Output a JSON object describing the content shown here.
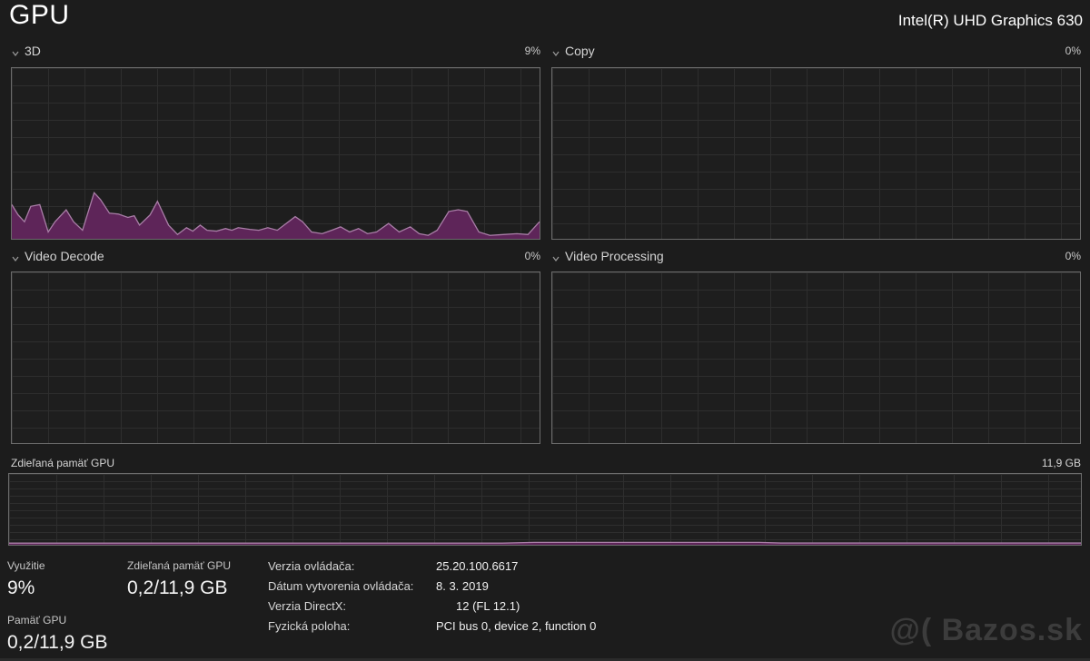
{
  "header": {
    "title": "GPU",
    "gpu_name": "Intel(R) UHD Graphics 630"
  },
  "sections": [
    {
      "label": "3D",
      "value": "9%"
    },
    {
      "label": "Copy",
      "value": "0%"
    },
    {
      "label": "Video Decode",
      "value": "0%"
    },
    {
      "label": "Video Processing",
      "value": "0%"
    }
  ],
  "shared_memory_section": {
    "label": "Zdieľaná pamäť GPU",
    "max_label": "11,9 GB"
  },
  "stats": {
    "usage": {
      "label": "Využitie",
      "value": "9%"
    },
    "shared_memory": {
      "label": "Zdieľaná pamäť GPU",
      "value": "0,2/11,9 GB"
    },
    "gpu_memory": {
      "label": "Pamäť GPU",
      "value": "0,2/11,9 GB"
    }
  },
  "driver_info": [
    {
      "label": "Verzia ovládača:",
      "value": "25.20.100.6617"
    },
    {
      "label": "Dátum vytvorenia ovládača:",
      "value": "8. 3. 2019"
    },
    {
      "label": "Verzia DirectX:",
      "value": "12 (FL 12.1)"
    },
    {
      "label": "Fyzická poloha:",
      "value": "PCI bus 0, device 2, function 0"
    }
  ],
  "watermark": "@( Bazos.sk",
  "colors": {
    "background": "#1c1c1c",
    "chart_background": "#1e1e1e",
    "chart_border": "#6b6b6b",
    "grid_line": "#2e2e2e",
    "chart_fill": "#5e2559",
    "chart_line": "#a97ea7"
  },
  "chart_data": [
    {
      "type": "area",
      "title": "3D",
      "current_value_pct": 9,
      "ylim": [
        0,
        100
      ],
      "legend_position": "top-right",
      "grid": true,
      "points": [
        [
          0,
          20
        ],
        [
          1.2,
          14
        ],
        [
          2.4,
          10
        ],
        [
          3.6,
          19
        ],
        [
          5.3,
          20
        ],
        [
          6.9,
          4
        ],
        [
          8.2,
          10
        ],
        [
          10.3,
          17
        ],
        [
          11.7,
          10
        ],
        [
          13.4,
          5
        ],
        [
          15.6,
          27
        ],
        [
          16.8,
          23
        ],
        [
          18.5,
          15
        ],
        [
          20.2,
          14.5
        ],
        [
          22,
          12.5
        ],
        [
          23.2,
          13.5
        ],
        [
          24.2,
          8
        ],
        [
          26.2,
          14
        ],
        [
          27.6,
          22
        ],
        [
          29.7,
          8
        ],
        [
          31.4,
          2.5
        ],
        [
          33.1,
          6.5
        ],
        [
          34.3,
          4.5
        ],
        [
          35.7,
          8
        ],
        [
          37,
          5
        ],
        [
          38.8,
          4.5
        ],
        [
          40.5,
          6
        ],
        [
          41.7,
          5
        ],
        [
          42.9,
          6.5
        ],
        [
          45.1,
          5.5
        ],
        [
          46.8,
          5
        ],
        [
          48.5,
          6.5
        ],
        [
          50.3,
          5
        ],
        [
          52,
          9
        ],
        [
          53.7,
          13
        ],
        [
          55.1,
          10
        ],
        [
          56.8,
          4
        ],
        [
          58.8,
          3
        ],
        [
          60.6,
          5
        ],
        [
          62.3,
          7
        ],
        [
          64,
          4
        ],
        [
          65.7,
          6
        ],
        [
          67.4,
          3
        ],
        [
          69.1,
          4
        ],
        [
          71.4,
          9
        ],
        [
          73.4,
          4
        ],
        [
          75.5,
          7
        ],
        [
          77.2,
          3
        ],
        [
          78.9,
          2
        ],
        [
          80.6,
          5
        ],
        [
          82.8,
          16
        ],
        [
          84.6,
          17
        ],
        [
          86.3,
          16
        ],
        [
          88.5,
          4
        ],
        [
          90.6,
          2
        ],
        [
          93.1,
          2.5
        ],
        [
          95.7,
          3
        ],
        [
          97.8,
          2.5
        ],
        [
          100,
          10
        ]
      ]
    },
    {
      "type": "area",
      "title": "Copy",
      "current_value_pct": 0,
      "ylim": [
        0,
        100
      ],
      "grid": true,
      "points": []
    },
    {
      "type": "area",
      "title": "Video Decode",
      "current_value_pct": 0,
      "ylim": [
        0,
        100
      ],
      "grid": true,
      "points": []
    },
    {
      "type": "area",
      "title": "Video Processing",
      "current_value_pct": 0,
      "ylim": [
        0,
        100
      ],
      "grid": true,
      "points": []
    },
    {
      "type": "area",
      "title": "Zdieľaná pamäť GPU",
      "current_value": "0,2/11,9 GB",
      "ymax_label": "11,9 GB",
      "ylim": [
        0,
        100
      ],
      "grid": true,
      "points": [
        [
          0,
          2.3
        ],
        [
          46,
          2.3
        ],
        [
          49,
          3.4
        ],
        [
          70,
          3.4
        ],
        [
          72,
          2.5
        ],
        [
          100,
          2.5
        ]
      ]
    }
  ]
}
